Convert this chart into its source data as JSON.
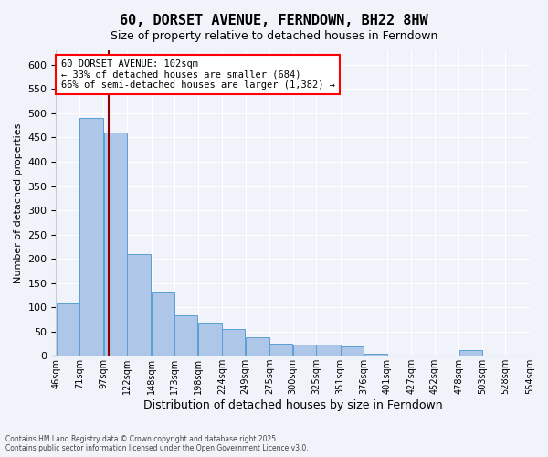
{
  "title": "60, DORSET AVENUE, FERNDOWN, BH22 8HW",
  "subtitle": "Size of property relative to detached houses in Ferndown",
  "xlabel": "Distribution of detached houses by size in Ferndown",
  "ylabel": "Number of detached properties",
  "property_size": 102,
  "annotation_title": "60 DORSET AVENUE: 102sqm",
  "annotation_line1": "← 33% of detached houses are smaller (684)",
  "annotation_line2": "66% of semi-detached houses are larger (1,382) →",
  "footer_line1": "Contains HM Land Registry data © Crown copyright and database right 2025.",
  "footer_line2": "Contains public sector information licensed under the Open Government Licence v3.0.",
  "bar_color": "#aec6e8",
  "bar_edge_color": "#5a9fd4",
  "vline_color": "#8b0000",
  "background_color": "#f0f4fa",
  "grid_color": "#ffffff",
  "bin_edges": [
    46,
    71,
    97,
    122,
    148,
    173,
    198,
    224,
    249,
    275,
    300,
    325,
    351,
    376,
    401,
    427,
    452,
    478,
    503,
    528,
    554
  ],
  "bin_labels": [
    "46sqm",
    "71sqm",
    "97sqm",
    "122sqm",
    "148sqm",
    "173sqm",
    "198sqm",
    "224sqm",
    "249sqm",
    "275sqm",
    "300sqm",
    "325sqm",
    "351sqm",
    "376sqm",
    "401sqm",
    "427sqm",
    "452sqm",
    "478sqm",
    "503sqm",
    "528sqm",
    "554sqm"
  ],
  "counts": [
    108,
    490,
    460,
    210,
    130,
    83,
    68,
    55,
    38,
    25,
    22,
    22,
    20,
    5,
    0,
    0,
    0,
    12,
    0,
    0
  ],
  "ylim": [
    0,
    630
  ],
  "yticks": [
    0,
    50,
    100,
    150,
    200,
    250,
    300,
    350,
    400,
    450,
    500,
    550,
    600
  ]
}
